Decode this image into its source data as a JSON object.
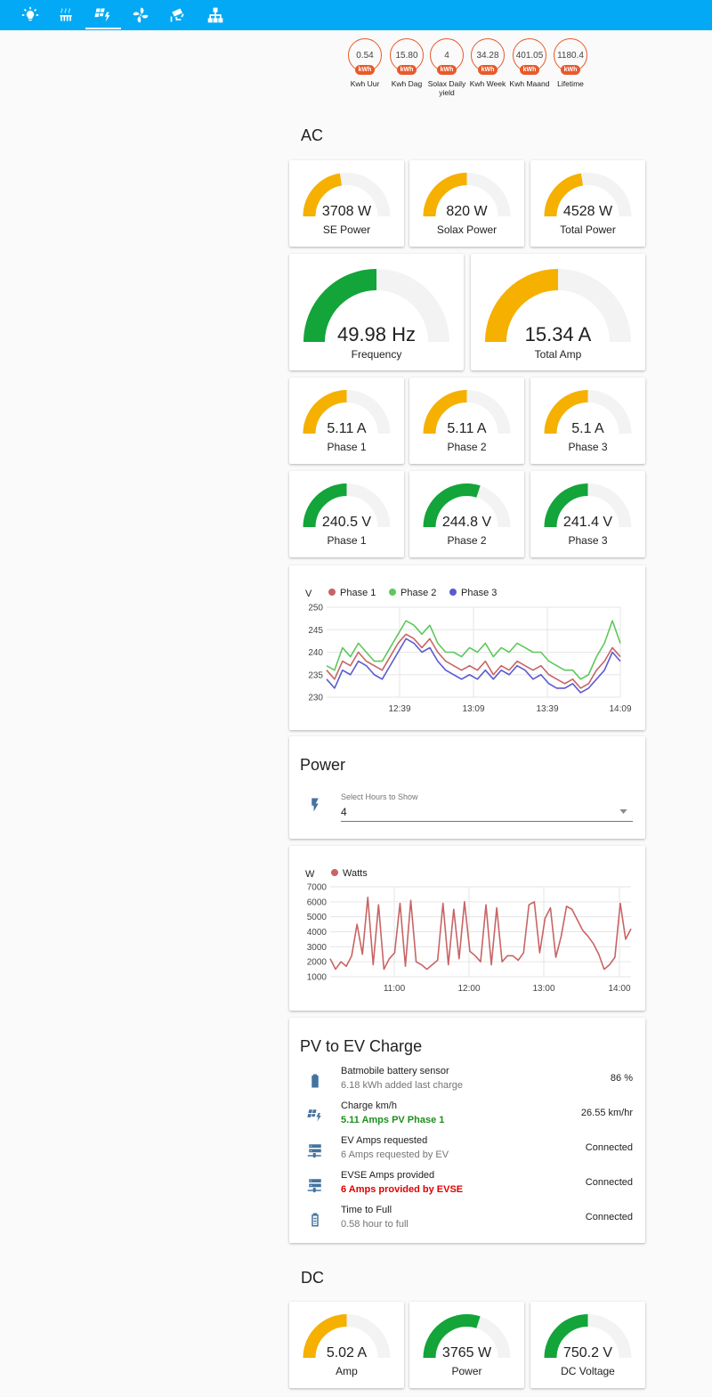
{
  "colors": {
    "accent": "#03a9f4",
    "badge": "#e85a2b",
    "gauge_amber": "#f5b000",
    "gauge_green": "#13a43a",
    "track": "#f3f3f3",
    "phase1": "#c86464",
    "phase2": "#5dc85d",
    "phase3": "#5b5bd0",
    "watts": "#c86464"
  },
  "toolbar": {
    "tabs": [
      {
        "icon": "lightbulb-icon"
      },
      {
        "icon": "radiator-icon"
      },
      {
        "icon": "solar-power-icon",
        "active": true
      },
      {
        "icon": "fan-icon"
      },
      {
        "icon": "cctv-icon"
      },
      {
        "icon": "network-icon"
      }
    ]
  },
  "badges": [
    {
      "value": "0.54",
      "unit": "kWh",
      "label": "Kwh Uur"
    },
    {
      "value": "15.80",
      "unit": "kWh",
      "label": "Kwh Dag"
    },
    {
      "value": "4",
      "unit": "kWh",
      "label": "Solax Daily yield"
    },
    {
      "value": "34.28",
      "unit": "kWh",
      "label": "Kwh Week"
    },
    {
      "value": "401.05",
      "unit": "kWh",
      "label": "Kwh Maand"
    },
    {
      "value": "1180.4",
      "unit": "kWh",
      "label": "Lifetime"
    }
  ],
  "ac": {
    "title": "AC",
    "power_gauges": [
      {
        "value": "3708 W",
        "name": "SE Power",
        "level": 0.45,
        "color": "amber"
      },
      {
        "value": "820 W",
        "name": "Solax Power",
        "level": 0.5,
        "color": "amber"
      },
      {
        "value": "4528 W",
        "name": "Total Power",
        "level": 0.45,
        "color": "amber"
      }
    ],
    "big_gauges": [
      {
        "value": "49.98 Hz",
        "name": "Frequency",
        "level": 0.5,
        "color": "green"
      },
      {
        "value": "15.34 A",
        "name": "Total Amp",
        "level": 0.5,
        "color": "amber"
      }
    ],
    "amp_gauges": [
      {
        "value": "5.11 A",
        "name": "Phase 1",
        "level": 0.5,
        "color": "amber"
      },
      {
        "value": "5.11 A",
        "name": "Phase 2",
        "level": 0.5,
        "color": "amber"
      },
      {
        "value": "5.1 A",
        "name": "Phase 3",
        "level": 0.5,
        "color": "amber"
      }
    ],
    "volt_gauges": [
      {
        "value": "240.5 V",
        "name": "Phase 1",
        "level": 0.5,
        "color": "green"
      },
      {
        "value": "244.8 V",
        "name": "Phase 2",
        "level": 0.6,
        "color": "green"
      },
      {
        "value": "241.4 V",
        "name": "Phase 3",
        "level": 0.5,
        "color": "green"
      }
    ]
  },
  "power": {
    "title": "Power",
    "select_label": "Select Hours to Show",
    "select_value": "4",
    "icon": "flash-icon"
  },
  "pv_ev": {
    "title": "PV to EV Charge",
    "rows": [
      {
        "icon": "battery-icon",
        "title": "Batmobile battery sensor",
        "sub": "6.18 kWh added last charge",
        "sub_color": "#757575",
        "sub_bold": false,
        "value": "86 %"
      },
      {
        "icon": "solar-power-icon",
        "title": "Charge km/h",
        "sub": "5.11 Amps PV Phase 1",
        "sub_color": "#1e8f1e",
        "sub_bold": true,
        "value": "26.55 km/hr"
      },
      {
        "icon": "server-network-icon",
        "title": "EV Amps requested",
        "sub": "6 Amps requested by EV",
        "sub_color": "#757575",
        "sub_bold": false,
        "value": "Connected"
      },
      {
        "icon": "server-network-icon",
        "title": "EVSE Amps provided",
        "sub": "6 Amps provided by EVSE",
        "sub_color": "#e00000",
        "sub_bold": true,
        "value": "Connected"
      },
      {
        "icon": "battery-charging-icon",
        "title": "Time to Full",
        "sub": "0.58 hour to full",
        "sub_color": "#757575",
        "sub_bold": false,
        "value": "Connected"
      }
    ]
  },
  "dc": {
    "title": "DC",
    "gauges": [
      {
        "value": "5.02 A",
        "name": "Amp",
        "level": 0.5,
        "color": "amber"
      },
      {
        "value": "3765 W",
        "name": "Power",
        "level": 0.6,
        "color": "green"
      },
      {
        "value": "750.2 V",
        "name": "DC Voltage",
        "level": 0.5,
        "color": "green"
      }
    ]
  },
  "chart_data": [
    {
      "type": "line",
      "ylabel": "V",
      "ylim": [
        230,
        250
      ],
      "yticks": [
        230,
        235,
        240,
        245,
        250
      ],
      "xticks": [
        "12:39",
        "13:09",
        "13:39",
        "14:09"
      ],
      "legend_position": "top-left",
      "series": [
        {
          "name": "Phase 1",
          "values": [
            236,
            234,
            238,
            237,
            240,
            238,
            237,
            236,
            239,
            242,
            244,
            243,
            241,
            243,
            240,
            238,
            237,
            236,
            237,
            236,
            238,
            235,
            237,
            236,
            238,
            237,
            236,
            237,
            235,
            234,
            233,
            234,
            232,
            233,
            236,
            238,
            241,
            239
          ]
        },
        {
          "name": "Phase 2",
          "values": [
            237,
            236,
            241,
            239,
            242,
            240,
            238,
            238,
            241,
            244,
            247,
            246,
            244,
            246,
            242,
            240,
            240,
            239,
            241,
            240,
            242,
            239,
            241,
            240,
            242,
            241,
            240,
            240,
            238,
            237,
            236,
            236,
            234,
            235,
            239,
            242,
            247,
            242
          ]
        },
        {
          "name": "Phase 3",
          "values": [
            234,
            232,
            236,
            235,
            238,
            237,
            235,
            234,
            237,
            240,
            243,
            242,
            240,
            241,
            238,
            236,
            235,
            234,
            235,
            234,
            236,
            234,
            236,
            235,
            237,
            236,
            234,
            235,
            233,
            232,
            232,
            233,
            231,
            232,
            234,
            236,
            240,
            238
          ]
        }
      ]
    },
    {
      "type": "line",
      "ylabel": "W",
      "ylim": [
        1000,
        7000
      ],
      "yticks": [
        1000,
        2000,
        3000,
        4000,
        5000,
        6000,
        7000
      ],
      "xticks": [
        "11:00",
        "12:00",
        "13:00",
        "14:00"
      ],
      "legend_position": "top-left",
      "series": [
        {
          "name": "Watts",
          "values": [
            2200,
            1500,
            2000,
            1700,
            2400,
            4500,
            2500,
            6300,
            1800,
            5800,
            1500,
            2200,
            2600,
            5900,
            1700,
            6100,
            2000,
            1800,
            1500,
            1800,
            2100,
            5900,
            1800,
            5500,
            2200,
            6000,
            2700,
            2400,
            2000,
            5800,
            1800,
            5600,
            2000,
            2400,
            2400,
            2100,
            2600,
            5800,
            6000,
            2600,
            4900,
            5600,
            2300,
            3700,
            5700,
            5500,
            4800,
            4100,
            3700,
            3200,
            2500,
            1500,
            1800,
            2300,
            5900,
            3500,
            4200
          ]
        }
      ]
    }
  ]
}
